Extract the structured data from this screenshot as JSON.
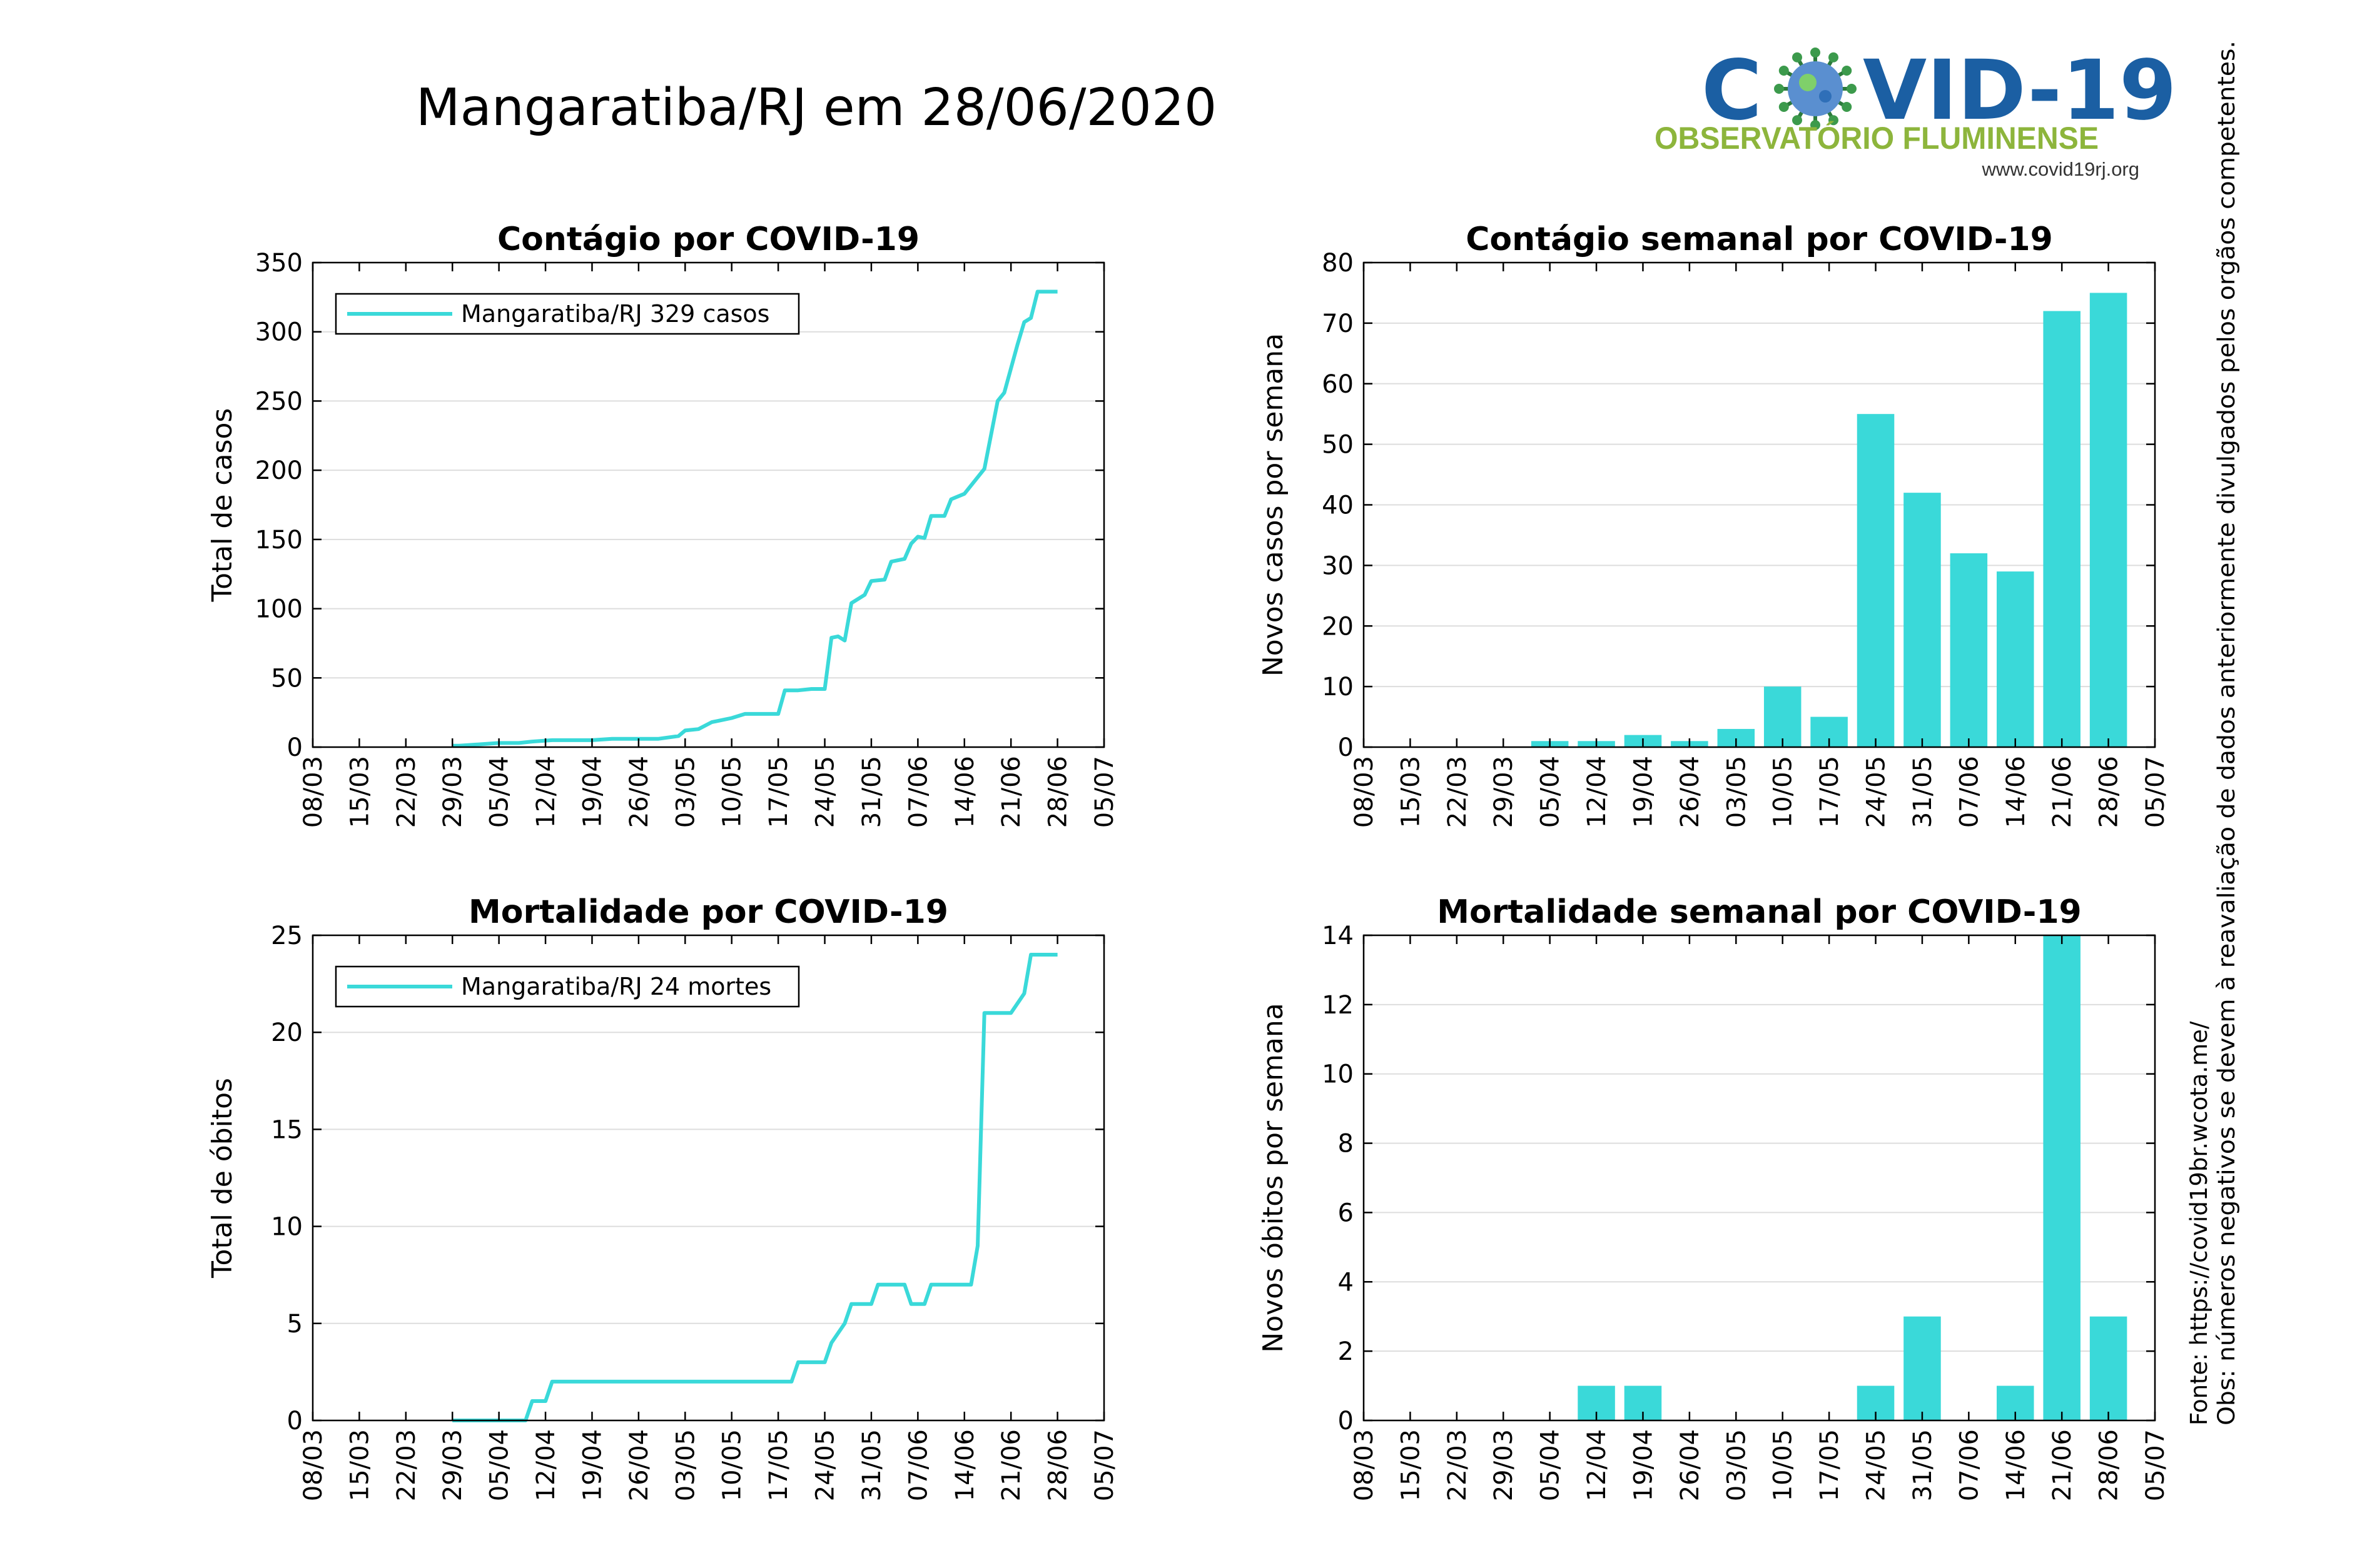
{
  "page_title": "Mangaratiba/RJ em 28/06/2020",
  "logo": {
    "main_before": "C",
    "main_after": "VID-19",
    "subtitle": "OBSERVATÓRIO FLUMINENSE",
    "url": "www.covid19rj.org",
    "virus_icon": "coronavirus-icon"
  },
  "side_notes": {
    "source": "Fonte: https://covid19br.wcota.me/",
    "obs": "Obs: números negativos se devem à reavaliação de dados anteriormente divulgados pelos orgãos competentes."
  },
  "colors": {
    "series": "#3ad9d9",
    "grid": "#dddddd",
    "axis": "#000000"
  },
  "x_tick_labels": [
    "08/03",
    "15/03",
    "22/03",
    "29/03",
    "05/04",
    "12/04",
    "19/04",
    "26/04",
    "03/05",
    "10/05",
    "17/05",
    "24/05",
    "31/05",
    "07/06",
    "14/06",
    "21/06",
    "28/06",
    "05/07"
  ],
  "chart_data": [
    {
      "id": "cases-total",
      "type": "line",
      "title": "Contágio por COVID-19",
      "ylabel": "Total de casos",
      "ylim": [
        0,
        350
      ],
      "yticks": [
        0,
        50,
        100,
        150,
        200,
        250,
        300,
        350
      ],
      "grid": true,
      "legend": {
        "label": "Mangaratiba/RJ  329 casos",
        "placement": "top-left"
      },
      "series": [
        {
          "name": "Mangaratiba/RJ",
          "x": [
            "29/03",
            "30/03",
            "02/04",
            "05/04",
            "08/04",
            "10/04",
            "13/04",
            "15/04",
            "19/04",
            "22/04",
            "26/04",
            "29/04",
            "02/05",
            "03/05",
            "05/05",
            "07/05",
            "09/05",
            "10/05",
            "12/05",
            "17/05",
            "18/05",
            "20/05",
            "22/05",
            "24/05",
            "25/05",
            "26/05",
            "27/05",
            "28/05",
            "30/05",
            "31/05",
            "02/06",
            "03/06",
            "05/06",
            "06/06",
            "07/06",
            "08/06",
            "09/06",
            "11/06",
            "12/06",
            "14/06",
            "17/06",
            "19/06",
            "20/06",
            "22/06",
            "23/06",
            "24/06",
            "25/06",
            "26/06",
            "28/06"
          ],
          "y": [
            1,
            1,
            2,
            3,
            3,
            4,
            5,
            5,
            5,
            6,
            6,
            6,
            8,
            12,
            13,
            18,
            20,
            21,
            24,
            24,
            41,
            41,
            42,
            42,
            79,
            80,
            77,
            104,
            110,
            120,
            121,
            134,
            136,
            147,
            152,
            151,
            167,
            167,
            179,
            183,
            201,
            250,
            256,
            291,
            307,
            310,
            329,
            329,
            329
          ]
        }
      ]
    },
    {
      "id": "cases-weekly",
      "type": "bar",
      "title": "Contágio semanal por COVID-19",
      "ylabel": "Novos casos por semana",
      "ylim": [
        0,
        80
      ],
      "yticks": [
        0,
        10,
        20,
        30,
        40,
        50,
        60,
        70,
        80
      ],
      "grid": true,
      "categories": [
        "05/04",
        "12/04",
        "19/04",
        "26/04",
        "03/05",
        "10/05",
        "17/05",
        "24/05",
        "31/05",
        "07/06",
        "14/06",
        "21/06",
        "28/06"
      ],
      "values": [
        1,
        1,
        2,
        1,
        3,
        10,
        5,
        55,
        42,
        32,
        29,
        72,
        75
      ]
    },
    {
      "id": "deaths-total",
      "type": "line",
      "title": "Mortalidade por COVID-19",
      "ylabel": "Total de óbitos",
      "ylim": [
        0,
        25
      ],
      "yticks": [
        0,
        5,
        10,
        15,
        20,
        25
      ],
      "grid": true,
      "legend": {
        "label": "Mangaratiba/RJ  24 mortes",
        "placement": "top-left"
      },
      "series": [
        {
          "name": "Mangaratiba/RJ",
          "x": [
            "29/03",
            "09/04",
            "10/04",
            "12/04",
            "13/04",
            "19/05",
            "20/05",
            "23/05",
            "24/05",
            "25/05",
            "27/05",
            "28/05",
            "30/05",
            "31/05",
            "01/06",
            "05/06",
            "06/06",
            "07/06",
            "08/06",
            "09/06",
            "14/06",
            "15/06",
            "16/06",
            "17/06",
            "19/06",
            "20/06",
            "21/06",
            "23/06",
            "24/06",
            "28/06"
          ],
          "y": [
            0,
            0,
            1,
            1,
            2,
            2,
            3,
            3,
            3,
            4,
            5,
            6,
            6,
            6,
            7,
            7,
            6,
            6,
            6,
            7,
            7,
            7,
            9,
            21,
            21,
            21,
            21,
            22,
            24,
            24
          ]
        }
      ]
    },
    {
      "id": "deaths-weekly",
      "type": "bar",
      "title": "Mortalidade semanal por COVID-19",
      "ylabel": "Novos óbitos por semana",
      "ylim": [
        0,
        14
      ],
      "yticks": [
        0,
        2,
        4,
        6,
        8,
        10,
        12,
        14
      ],
      "grid": true,
      "categories": [
        "12/04",
        "19/04",
        "24/05",
        "31/05",
        "14/06",
        "21/06",
        "28/06"
      ],
      "values": [
        1,
        1,
        1,
        3,
        1,
        14,
        3
      ]
    }
  ]
}
